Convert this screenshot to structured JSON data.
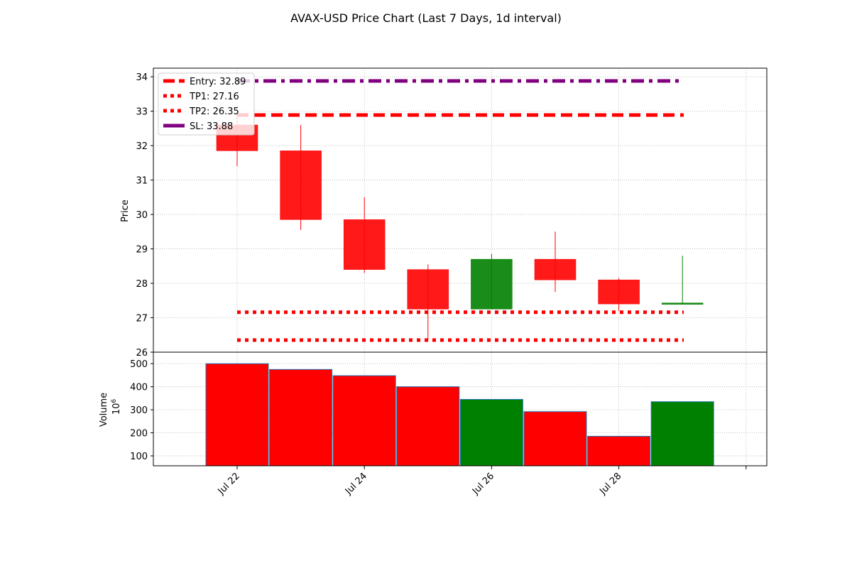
{
  "chart_data": {
    "title": "AVAX-USD Price Chart (Last 7 Days, 1d interval)",
    "type": "candlestick",
    "dates": [
      "Jul 22",
      "Jul 23",
      "Jul 24",
      "Jul 25",
      "Jul 26",
      "Jul 27",
      "Jul 28",
      "Jul 29"
    ],
    "candles": [
      {
        "date": "Jul 22",
        "open": 32.6,
        "high": 32.9,
        "low": 31.4,
        "close": 31.85,
        "direction": "down"
      },
      {
        "date": "Jul 23",
        "open": 31.85,
        "high": 32.6,
        "low": 29.55,
        "close": 29.85,
        "direction": "down"
      },
      {
        "date": "Jul 24",
        "open": 29.85,
        "high": 30.5,
        "low": 28.3,
        "close": 28.4,
        "direction": "down"
      },
      {
        "date": "Jul 25",
        "open": 28.4,
        "high": 28.55,
        "low": 26.35,
        "close": 27.25,
        "direction": "down"
      },
      {
        "date": "Jul 26",
        "open": 27.25,
        "high": 28.85,
        "low": 27.25,
        "close": 28.7,
        "direction": "up"
      },
      {
        "date": "Jul 27",
        "open": 28.7,
        "high": 29.5,
        "low": 27.75,
        "close": 28.1,
        "direction": "down"
      },
      {
        "date": "Jul 28",
        "open": 28.1,
        "high": 28.15,
        "low": 27.2,
        "close": 27.4,
        "direction": "down"
      },
      {
        "date": "Jul 29",
        "open": 27.4,
        "high": 28.8,
        "low": 27.4,
        "close": 27.43,
        "direction": "up"
      }
    ],
    "levels": [
      {
        "label": "Entry: 32.89",
        "value": 32.89,
        "color": "#ff0000",
        "style": "dashed"
      },
      {
        "label": "TP1: 27.16",
        "value": 27.16,
        "color": "#ff0000",
        "style": "dotted"
      },
      {
        "label": "TP2: 26.35",
        "value": 26.35,
        "color": "#ff0000",
        "style": "dotted"
      },
      {
        "label": "SL: 33.88",
        "value": 33.88,
        "color": "#800080",
        "style": "dashdot"
      }
    ],
    "price_axis": {
      "label": "Price",
      "range": [
        26,
        34
      ],
      "ticks": [
        "26",
        "27",
        "28",
        "29",
        "30",
        "31",
        "32",
        "33",
        "34"
      ]
    },
    "volume": {
      "values": [
        500,
        475,
        448,
        400,
        345,
        292,
        185,
        335
      ],
      "directions": [
        "down",
        "down",
        "down",
        "down",
        "up",
        "down",
        "down",
        "up"
      ],
      "unit_multiplier": "10^6"
    },
    "volume_axis": {
      "label": "Volume",
      "multiplier": "10",
      "multiplier_exp": "6",
      "range": [
        57,
        550
      ],
      "ticks": [
        "100",
        "200",
        "300",
        "400",
        "500"
      ]
    },
    "x_ticks": [
      "Jul 22",
      "Jul 24",
      "Jul 26",
      "Jul 28",
      ""
    ],
    "grid": true,
    "legend_position": "top-left",
    "colors": {
      "down": "#ff0000",
      "up": "#008000",
      "sl": "#800080",
      "volume_edge": "#1f77b4",
      "grid": "#b0b0b0"
    }
  }
}
